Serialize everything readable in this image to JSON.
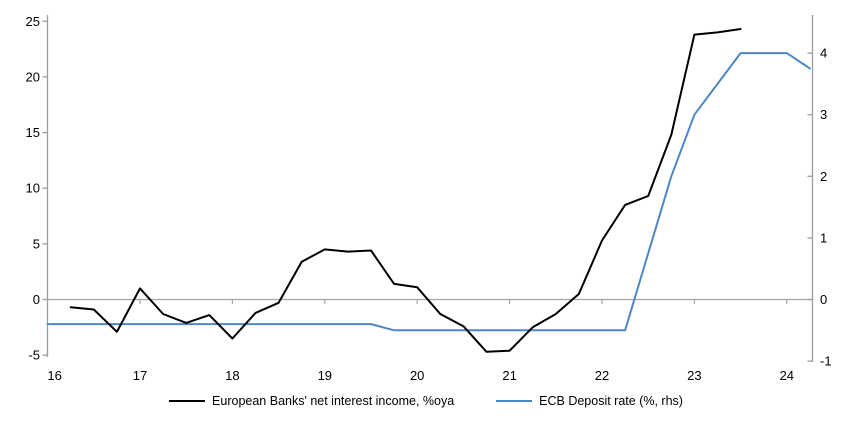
{
  "chart_data": {
    "type": "line",
    "title": "",
    "x_axis": {
      "tick_labels": [
        "16",
        "17",
        "18",
        "19",
        "20",
        "21",
        "22",
        "23",
        "24"
      ],
      "tick_values": [
        16,
        17,
        18,
        19,
        20,
        21,
        22,
        23,
        24
      ],
      "range": [
        16,
        24.28
      ],
      "grid": false
    },
    "y_left_axis": {
      "tick_labels": [
        "-5",
        "0",
        "5",
        "10",
        "15",
        "20",
        "25"
      ],
      "tick_values": [
        -5,
        0,
        5,
        10,
        15,
        20,
        25
      ],
      "range": [
        -5,
        25.5
      ]
    },
    "y_right_axis": {
      "tick_labels": [
        "-1",
        "0",
        "1",
        "2",
        "3",
        "4"
      ],
      "tick_values": [
        -1,
        0,
        1,
        2,
        3,
        4
      ],
      "range": [
        -1,
        4.6
      ]
    },
    "series": [
      {
        "id": "ecb-deposit-rate-line",
        "name": "ECB Deposit rate (%, rhs)",
        "axis": "right",
        "color": "#4f87c5",
        "stroke_width": 2,
        "x": [
          16.0,
          16.25,
          16.5,
          16.75,
          17.0,
          17.25,
          17.5,
          17.75,
          18.0,
          18.25,
          18.5,
          18.75,
          19.0,
          19.25,
          19.5,
          19.75,
          20.0,
          20.25,
          20.5,
          20.75,
          21.0,
          21.25,
          21.5,
          21.75,
          22.0,
          22.25,
          22.5,
          22.75,
          23.0,
          23.25,
          23.5,
          23.75,
          24.0,
          24.25
        ],
        "y": [
          -0.4,
          -0.4,
          -0.4,
          -0.4,
          -0.4,
          -0.4,
          -0.4,
          -0.4,
          -0.4,
          -0.4,
          -0.4,
          -0.4,
          -0.4,
          -0.4,
          -0.4,
          -0.5,
          -0.5,
          -0.5,
          -0.5,
          -0.5,
          -0.5,
          -0.5,
          -0.5,
          -0.5,
          -0.5,
          -0.5,
          0.75,
          2.0,
          3.0,
          3.5,
          4.0,
          4.0,
          4.0,
          3.75
        ]
      },
      {
        "id": "european-banks-nii-line",
        "name": "European Banks' net interest income, %oya",
        "axis": "left",
        "color": "#000000",
        "stroke_width": 2,
        "x": [
          16.25,
          16.5,
          16.75,
          17.0,
          17.25,
          17.5,
          17.75,
          18.0,
          18.25,
          18.5,
          18.75,
          19.0,
          19.25,
          19.5,
          19.75,
          20.0,
          20.25,
          20.5,
          20.75,
          21.0,
          21.25,
          21.5,
          21.75,
          22.0,
          22.25,
          22.5,
          22.75,
          23.0,
          23.25,
          23.5
        ],
        "y": [
          -0.7,
          -0.9,
          -2.9,
          1.0,
          -1.3,
          -2.1,
          -1.4,
          -3.5,
          -1.2,
          -0.3,
          3.4,
          4.5,
          4.3,
          4.4,
          1.4,
          1.1,
          -1.3,
          -2.4,
          -4.7,
          -4.6,
          -2.5,
          -1.3,
          0.5,
          5.3,
          8.5,
          9.3,
          14.8,
          23.8,
          24.0,
          24.3
        ]
      }
    ],
    "legend": [
      {
        "label": "European Banks' net interest income, %oya",
        "color": "#000000"
      },
      {
        "label": "ECB Deposit rate (%, rhs)",
        "color": "#4f87c5"
      }
    ],
    "legend_position": "bottom-center",
    "colors": {
      "axis_line": "#9c9c9c",
      "zero_line": "#a6a6a6",
      "tick_text": "#000000"
    }
  }
}
